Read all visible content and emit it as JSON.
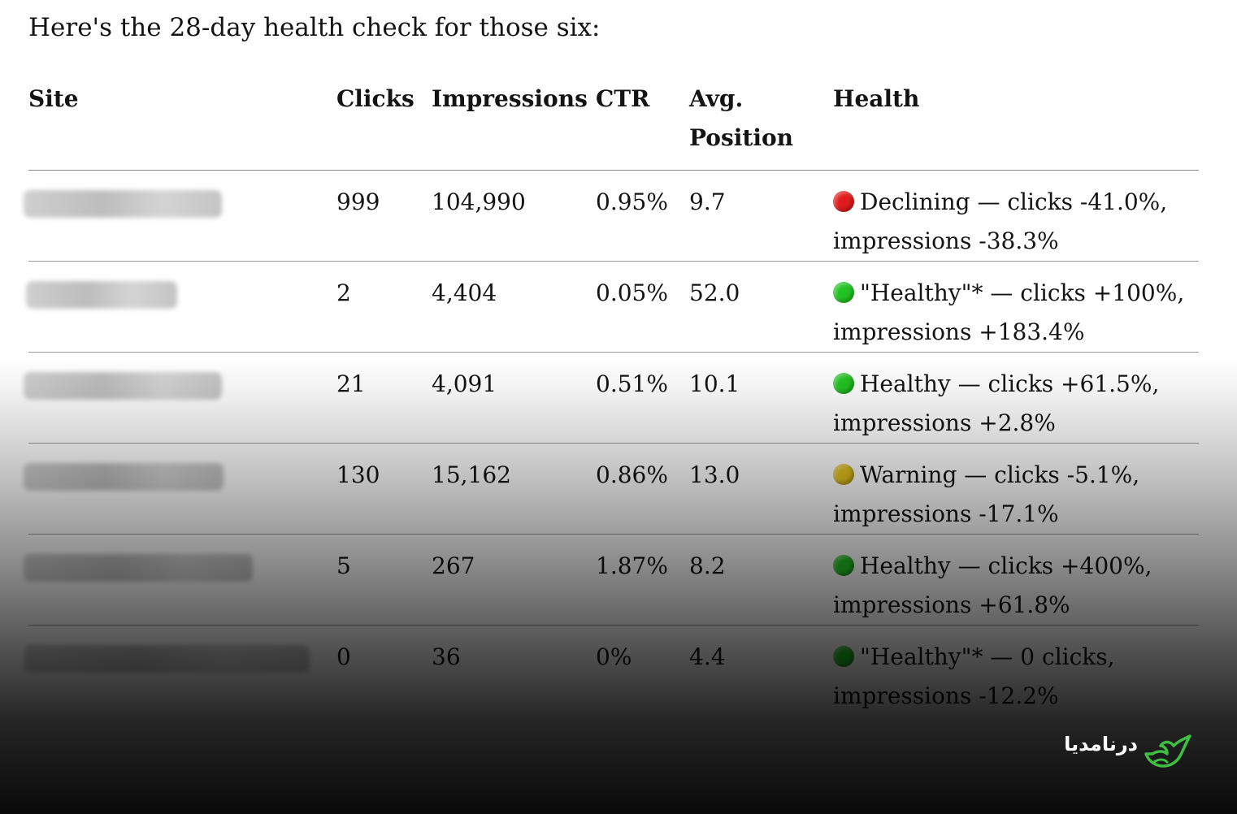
{
  "intro": "Here's the 28-day health check for those six:",
  "table": {
    "headers": {
      "site": "Site",
      "clicks": "Clicks",
      "impressions": "Impressions",
      "ctr": "CTR",
      "position": "Avg. Position",
      "health": "Health"
    },
    "rows": [
      {
        "clicks": "999",
        "impressions": "104,990",
        "ctr": "0.95%",
        "position": "9.7",
        "health_line1": "Declining — clicks -41.0%,",
        "health_line2": "impressions -38.3%",
        "status_color": "#e01b1b"
      },
      {
        "clicks": "2",
        "impressions": "4,404",
        "ctr": "0.05%",
        "position": "52.0",
        "health_line1": "\"Healthy\"* — clicks +100%,",
        "health_line2": "impressions +183.4%",
        "status_color": "#22c322"
      },
      {
        "clicks": "21",
        "impressions": "4,091",
        "ctr": "0.51%",
        "position": "10.1",
        "health_line1": "Healthy — clicks +61.5%,",
        "health_line2": "impressions +2.8%",
        "status_color": "#22c322"
      },
      {
        "clicks": "130",
        "impressions": "15,162",
        "ctr": "0.86%",
        "position": "13.0",
        "health_line1": "Warning — clicks -5.1%,",
        "health_line2": "impressions -17.1%",
        "status_color": "#e3c21a"
      },
      {
        "clicks": "5",
        "impressions": "267",
        "ctr": "1.87%",
        "position": "8.2",
        "health_line1": "Healthy — clicks +400%,",
        "health_line2": "impressions +61.8%",
        "status_color": "#22c322"
      },
      {
        "clicks": "0",
        "impressions": "36",
        "ctr": "0%",
        "position": "4.4",
        "health_line1": "\"Healthy\"* — 0 clicks,",
        "health_line2": "impressions -12.2%",
        "status_color": "#22c322"
      }
    ]
  },
  "watermark": {
    "text": "درنامدیا",
    "icon": "bird-logo-icon",
    "color": "#3fbf3f"
  }
}
